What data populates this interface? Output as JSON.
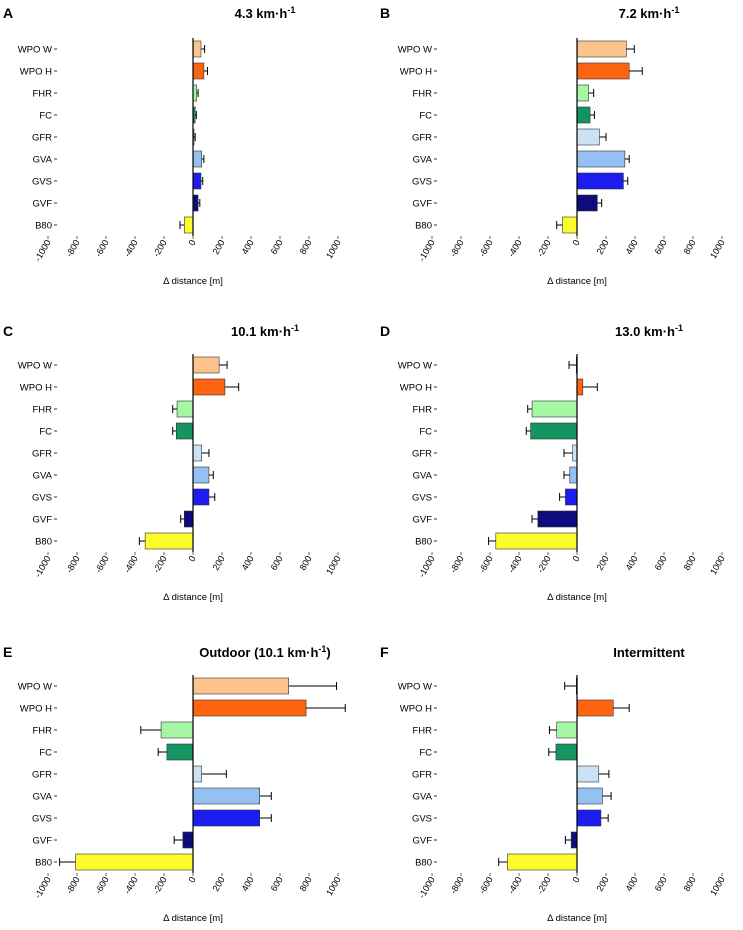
{
  "figure": {
    "categories": [
      "WPO W",
      "WPO H",
      "FHR",
      "FC",
      "GFR",
      "GVA",
      "GVS",
      "GVF",
      "B80"
    ],
    "colors": {
      "WPO W": "#fcc48c",
      "WPO H": "#fe6410",
      "FHR": "#a4f8a4",
      "FC": "#139461",
      "GFR": "#cce0f6",
      "GVA": "#94c0f2",
      "GVS": "#1c1cf0",
      "GVF": "#0c0c7c",
      "B80": "#fcfc2c"
    },
    "xticks": [
      "-1000",
      "-800",
      "-600",
      "-400",
      "-200",
      "0",
      "200",
      "400",
      "600",
      "800",
      "1000"
    ]
  },
  "chart_data": [
    {
      "type": "bar",
      "orientation": "horizontal",
      "letter": "A",
      "title_main": "4.3 km·h",
      "title_sup": "-1",
      "xlabel": "Δ distance [m]",
      "xlim": [
        -1000,
        1000
      ],
      "categories": [
        "WPO W",
        "WPO H",
        "FHR",
        "FC",
        "GFR",
        "GVA",
        "GVS",
        "GVF",
        "B80"
      ],
      "values": [
        55,
        75,
        25,
        15,
        5,
        60,
        55,
        35,
        -60
      ],
      "errors": [
        25,
        25,
        10,
        8,
        10,
        15,
        12,
        12,
        30
      ]
    },
    {
      "type": "bar",
      "orientation": "horizontal",
      "letter": "B",
      "title_main": "7.2 km·h",
      "title_sup": "-1",
      "xlabel": "Δ distance [m]",
      "xlim": [
        -1000,
        1000
      ],
      "categories": [
        "WPO W",
        "WPO H",
        "FHR",
        "FC",
        "GFR",
        "GVA",
        "GVS",
        "GVF",
        "B80"
      ],
      "values": [
        340,
        360,
        80,
        90,
        155,
        330,
        320,
        140,
        -100
      ],
      "errors": [
        55,
        90,
        35,
        30,
        45,
        30,
        30,
        30,
        40
      ]
    },
    {
      "type": "bar",
      "orientation": "horizontal",
      "letter": "C",
      "title_main": "10.1 km·h",
      "title_sup": "-1",
      "xlabel": "Δ distance [m]",
      "xlim": [
        -1000,
        1000
      ],
      "categories": [
        "WPO W",
        "WPO H",
        "FHR",
        "FC",
        "GFR",
        "GVA",
        "GVS",
        "GVF",
        "B80"
      ],
      "values": [
        180,
        220,
        -110,
        -115,
        60,
        110,
        110,
        -60,
        -330
      ],
      "errors": [
        55,
        95,
        30,
        25,
        50,
        30,
        40,
        25,
        40
      ]
    },
    {
      "type": "bar",
      "orientation": "horizontal",
      "letter": "D",
      "title_main": "13.0 km·h",
      "title_sup": "-1",
      "xlabel": "Δ distance [m]",
      "xlim": [
        -1000,
        1000
      ],
      "categories": [
        "WPO W",
        "WPO H",
        "FHR",
        "FC",
        "GFR",
        "GVA",
        "GVS",
        "GVF",
        "B80"
      ],
      "values": [
        -5,
        40,
        -310,
        -320,
        -30,
        -50,
        -80,
        -270,
        -560
      ],
      "errors": [
        50,
        100,
        30,
        30,
        60,
        40,
        40,
        40,
        50
      ]
    },
    {
      "type": "bar",
      "orientation": "horizontal",
      "letter": "E",
      "title_main": "Outdoor (10.1 km·h",
      "title_sup": "-1",
      "title_tail": ")",
      "xlabel": "Δ distance [m]",
      "xlim": [
        -1000,
        1000
      ],
      "categories": [
        "WPO W",
        "WPO H",
        "FHR",
        "FC",
        "GFR",
        "GVA",
        "GVS",
        "GVF",
        "B80"
      ],
      "values": [
        660,
        780,
        -220,
        -180,
        60,
        460,
        460,
        -70,
        -810
      ],
      "errors": [
        330,
        270,
        140,
        60,
        170,
        80,
        80,
        60,
        110
      ]
    },
    {
      "type": "bar",
      "orientation": "horizontal",
      "letter": "F",
      "title_main": "Intermittent",
      "title_sup": "",
      "title_tail": "",
      "xlabel": "Δ distance [m]",
      "xlim": [
        -1000,
        1000
      ],
      "categories": [
        "WPO W",
        "WPO H",
        "FHR",
        "FC",
        "GFR",
        "GVA",
        "GVS",
        "GVF",
        "B80"
      ],
      "values": [
        -5,
        250,
        -140,
        -145,
        150,
        175,
        165,
        -40,
        -480
      ],
      "errors": [
        80,
        110,
        50,
        50,
        70,
        60,
        50,
        40,
        60
      ]
    }
  ]
}
